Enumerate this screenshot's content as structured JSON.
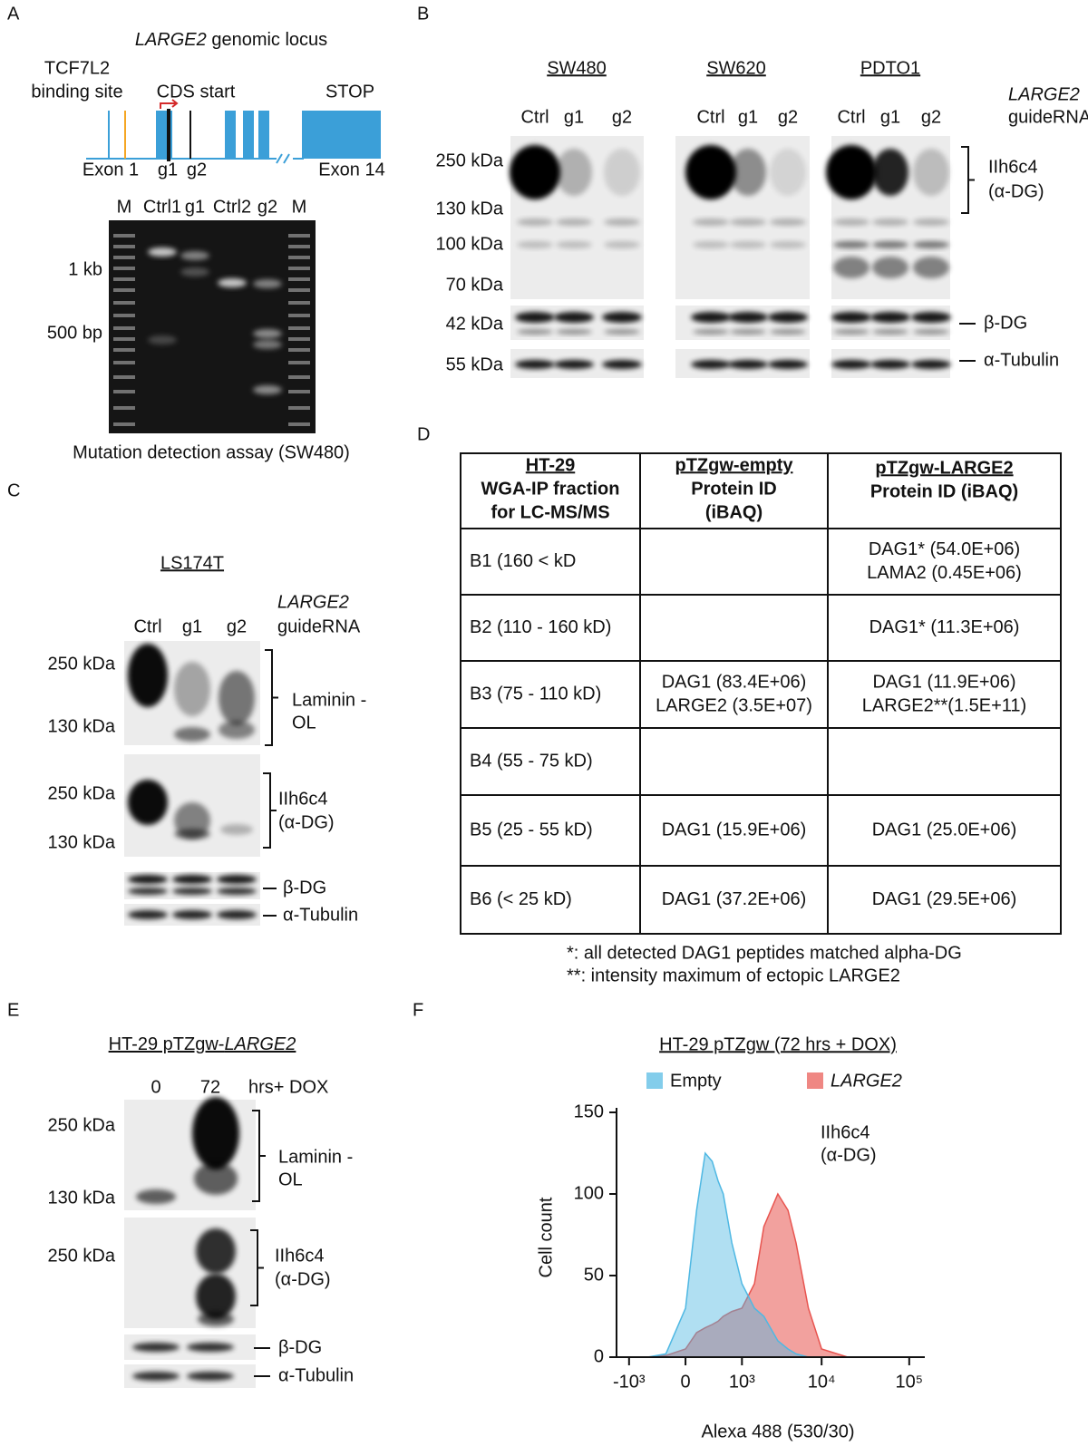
{
  "panel_labels": [
    "A",
    "B",
    "C",
    "D",
    "E",
    "F"
  ],
  "panel_a": {
    "gene": "LARGE2",
    "title": "genomic locus",
    "tcf7l2": [
      "TCF7L2",
      "binding site"
    ],
    "cds_start": "CDS start",
    "stop": "STOP",
    "exon_first": "Exon 1",
    "guides": [
      "g1",
      "g2"
    ],
    "exon_last": "Exon 14",
    "lanes": [
      "M",
      "Ctrl1",
      "g1",
      "Ctrl2",
      "g2",
      "M"
    ],
    "markers": [
      "1 kb",
      "500 bp"
    ],
    "caption": "Mutation detection assay (SW480)"
  },
  "panel_b": {
    "cell_lines": [
      "SW480",
      "SW620",
      "PDTO1"
    ],
    "lanes": [
      "Ctrl",
      "g1",
      "g2"
    ],
    "gene": "LARGE2",
    "guide": "guideRNA",
    "mw": [
      "250 kDa",
      "130 kDa",
      "100 kDa",
      "70 kDa",
      "42 kDa",
      "55 kDa"
    ],
    "antibody": [
      "IIh6c4",
      "(α-DG)"
    ],
    "beta": "β-DG",
    "tubulin": "α-Tubulin"
  },
  "panel_c": {
    "cell_line": "LS174T",
    "lanes": [
      "Ctrl",
      "g1",
      "g2"
    ],
    "gene": "LARGE2",
    "guide": "guideRNA",
    "mw": [
      "250 kDa",
      "130 kDa",
      "250 kDa",
      "130 kDa"
    ],
    "laminin": [
      "Laminin -",
      "OL"
    ],
    "antibody": [
      "IIh6c4",
      "(α-DG)"
    ],
    "beta": "β-DG",
    "tubulin": "α-Tubulin"
  },
  "panel_d": {
    "header": [
      [
        "HT-29",
        "WGA-IP fraction",
        "for LC-MS/MS"
      ],
      [
        "pTZgw-empty",
        "Protein ID",
        "(iBAQ)"
      ],
      [
        "pTZgw-LARGE2",
        "Protein ID (iBAQ)"
      ]
    ],
    "rows": [
      [
        [
          "B1 (160 < kD"
        ],
        [],
        [
          "DAG1* (54.0E+06)",
          "LAMA2 (0.45E+06)"
        ]
      ],
      [
        [
          "B2 (110 - 160 kD)"
        ],
        [],
        [
          "DAG1* (11.3E+06)"
        ]
      ],
      [
        [
          "B3 (75 - 110 kD)"
        ],
        [
          "DAG1 (83.4E+06)",
          "LARGE2 (3.5E+07)"
        ],
        [
          "DAG1 (11.9E+06)",
          "LARGE2**(1.5E+11)"
        ]
      ],
      [
        [
          "B4 (55 - 75 kD)"
        ],
        [],
        []
      ],
      [
        [
          "B5 (25 - 55 kD)"
        ],
        [
          "DAG1 (15.9E+06)"
        ],
        [
          "DAG1 (25.0E+06)"
        ]
      ],
      [
        [
          "B6 (< 25 kD)"
        ],
        [
          "DAG1 (37.2E+06)"
        ],
        [
          "DAG1 (29.5E+06)"
        ]
      ]
    ],
    "footnotes": [
      "*: all detected DAG1 peptides matched alpha-DG",
      "**: intensity maximum of ectopic LARGE2"
    ]
  },
  "panel_e": {
    "title": "HT-29 pTZgw-",
    "gene": "LARGE2",
    "lanes": [
      "0",
      "72"
    ],
    "condition": "hrs+ DOX",
    "mw": [
      "250 kDa",
      "130 kDa",
      "250 kDa"
    ],
    "laminin": [
      "Laminin -",
      "OL"
    ],
    "antibody": [
      "IIh6c4",
      "(α-DG)"
    ],
    "beta": "β-DG",
    "tubulin": "α-Tubulin"
  },
  "chart_data": {
    "type": "area",
    "title": "HT-29 pTZgw (72 hrs + DOX)",
    "x_label": "Alexa 488 (530/30)",
    "y_label": "Cell count",
    "annotation": [
      "IIh6c4",
      "(α-DG)"
    ],
    "x_scale": "biexponential",
    "x": [
      -1500,
      -1000,
      -500,
      -200,
      0,
      100,
      200,
      300,
      400,
      500,
      700,
      1000,
      1500,
      2000,
      3000,
      4000,
      5000,
      7000,
      10000,
      20000,
      50000,
      150000
    ],
    "series": [
      {
        "name": "LARGE2",
        "color": "#e8544f",
        "values": [
          0,
          0,
          0,
          1,
          5,
          15,
          18,
          20,
          22,
          25,
          28,
          30,
          45,
          80,
          100,
          90,
          70,
          30,
          5,
          0,
          0,
          0
        ]
      },
      {
        "name": "Empty",
        "color": "#4fb8e3",
        "values": [
          0,
          0,
          0,
          2,
          30,
          90,
          125,
          120,
          108,
          100,
          70,
          45,
          30,
          25,
          10,
          5,
          2,
          0,
          0,
          0,
          0,
          0
        ]
      }
    ],
    "xlim": [
      -1500,
      150000
    ],
    "ylim": [
      0,
      150
    ],
    "xticks": [
      {
        "value": -1000,
        "label": "-10³"
      },
      0,
      {
        "value": 1000,
        "label": "10³"
      },
      {
        "value": 10000,
        "label": "10⁴"
      },
      {
        "value": 100000,
        "label": "10⁵"
      }
    ],
    "yticks": [
      0,
      50,
      100,
      150
    ]
  }
}
